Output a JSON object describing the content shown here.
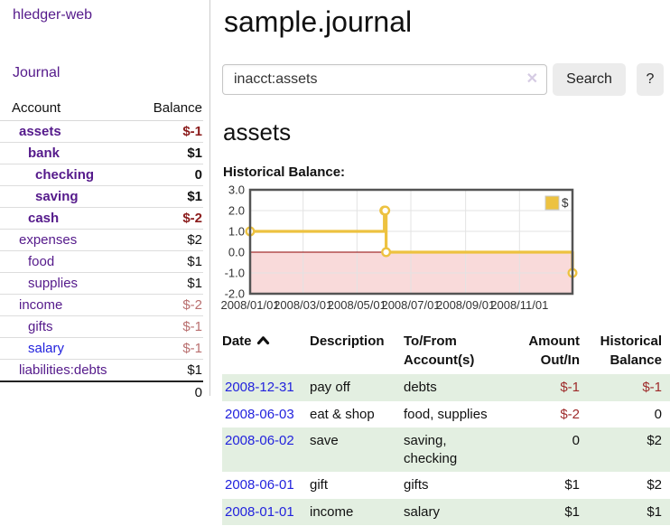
{
  "app": {
    "brand": "hledger-web",
    "nav": {
      "journal": "Journal"
    }
  },
  "sidebar": {
    "header": {
      "account": "Account",
      "balance": "Balance"
    },
    "accounts": [
      {
        "name": "assets",
        "balance": "$-1",
        "depth": 1,
        "bold": true,
        "balance_tone": "negative-strong"
      },
      {
        "name": "bank",
        "balance": "$1",
        "depth": 2,
        "bold": true,
        "balance_tone": "normal"
      },
      {
        "name": "checking",
        "balance": "0",
        "depth": 3,
        "bold": true,
        "balance_tone": "normal"
      },
      {
        "name": "saving",
        "balance": "$1",
        "depth": 3,
        "bold": true,
        "balance_tone": "normal"
      },
      {
        "name": "cash",
        "balance": "$-2",
        "depth": 2,
        "bold": true,
        "balance_tone": "negative-strong"
      },
      {
        "name": "expenses",
        "balance": "$2",
        "depth": 1,
        "bold": false,
        "balance_tone": "normal"
      },
      {
        "name": "food",
        "balance": "$1",
        "depth": 2,
        "bold": false,
        "balance_tone": "normal"
      },
      {
        "name": "supplies",
        "balance": "$1",
        "depth": 2,
        "bold": false,
        "balance_tone": "normal"
      },
      {
        "name": "income",
        "balance": "$-2",
        "depth": 1,
        "bold": false,
        "balance_tone": "negative-soft"
      },
      {
        "name": "gifts",
        "balance": "$-1",
        "depth": 2,
        "bold": false,
        "balance_tone": "negative-soft"
      },
      {
        "name": "salary",
        "balance": "$-1",
        "depth": 2,
        "bold": false,
        "balance_tone": "negative-soft"
      },
      {
        "name": "liabilities:debts",
        "balance": "$1",
        "depth": 1,
        "bold": false,
        "balance_tone": "normal"
      }
    ],
    "total": "0"
  },
  "header": {
    "title": "sample.journal"
  },
  "search": {
    "value": "inacct:assets",
    "clear_glyph": "✕",
    "button_label": "Search",
    "help_label": "?"
  },
  "account_page": {
    "heading": "assets",
    "chart_title": "Historical Balance:"
  },
  "chart_data": {
    "type": "line",
    "step": true,
    "title": "Historical Balance:",
    "series": [
      {
        "name": "$",
        "color": "#edc240",
        "points": [
          {
            "date": "2008-01-01",
            "value": 1
          },
          {
            "date": "2008-06-01",
            "value": 2
          },
          {
            "date": "2008-06-02",
            "value": 2
          },
          {
            "date": "2008-06-03",
            "value": 0
          },
          {
            "date": "2008-12-31",
            "value": -1
          }
        ]
      }
    ],
    "x_range": [
      "2008-01-01",
      "2008-12-31"
    ],
    "x_tick_labels": [
      "2008/01/01",
      "2008/03/01",
      "2008/05/01",
      "2008/07/01",
      "2008/09/01",
      "2008/11/01"
    ],
    "y_ticks": [
      3,
      2,
      1,
      0,
      -1,
      -2
    ],
    "ylim": [
      -2,
      3
    ],
    "grid": true,
    "legend": {
      "label": "$",
      "position": "top-right"
    },
    "line_color": "#edc240",
    "negative_fill": "#f9dada",
    "zero_line_color": "#8e0000",
    "border_color": "#545454"
  },
  "register": {
    "columns": {
      "date": "Date",
      "description": "Description",
      "to_from": "To/From Account(s)",
      "amount": "Amount Out/In",
      "balance": "Historical Balance"
    },
    "rows": [
      {
        "date": "2008-12-31",
        "description": "pay off",
        "to_from": "debts",
        "amount": "$-1",
        "balance": "$-1"
      },
      {
        "date": "2008-06-03",
        "description": "eat & shop",
        "to_from": "food, supplies",
        "amount": "$-2",
        "balance": "0"
      },
      {
        "date": "2008-06-02",
        "description": "save",
        "to_from": "saving, checking",
        "amount": "0",
        "balance": "$2"
      },
      {
        "date": "2008-06-01",
        "description": "gift",
        "to_from": "gifts",
        "amount": "$1",
        "balance": "$2"
      },
      {
        "date": "2008-01-01",
        "description": "income",
        "to_from": "salary",
        "amount": "$1",
        "balance": "$1"
      }
    ]
  },
  "colors": {
    "link_visited": "#551a8b",
    "link_unvisited": "#2222dd",
    "negative_strong": "#8b1c1c",
    "negative_soft": "#b96f6f",
    "negative_table": "#9e2a2a",
    "row_stripe_green": "#e3efe1",
    "series_gold": "#edc240"
  }
}
